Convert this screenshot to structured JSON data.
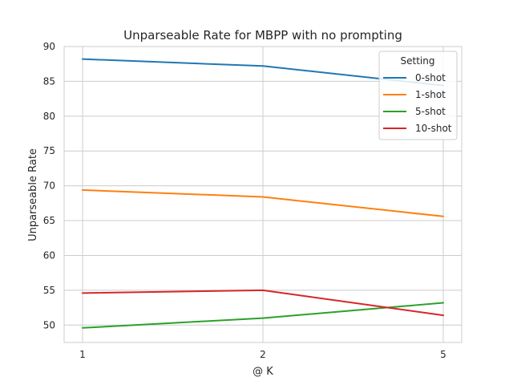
{
  "chart_data": {
    "type": "line",
    "title": "Unparseable Rate for MBPP with no prompting",
    "xlabel": "@ K",
    "ylabel": "Unparseable Rate",
    "categories": [
      "1",
      "2",
      "5"
    ],
    "ylim": [
      47.5,
      90
    ],
    "yticks": [
      50,
      55,
      60,
      65,
      70,
      75,
      80,
      85,
      90
    ],
    "grid": true,
    "legend": {
      "title": "Setting",
      "placement": "top-right"
    },
    "series": [
      {
        "name": "0-shot",
        "color": "#1f77b4",
        "values": [
          88.2,
          87.2,
          84.4
        ]
      },
      {
        "name": "1-shot",
        "color": "#ff7f0e",
        "values": [
          69.4,
          68.4,
          65.6
        ]
      },
      {
        "name": "5-shot",
        "color": "#2ca02c",
        "values": [
          49.6,
          51.0,
          53.2
        ]
      },
      {
        "name": "10-shot",
        "color": "#d62728",
        "values": [
          54.6,
          55.0,
          51.4
        ]
      }
    ]
  }
}
